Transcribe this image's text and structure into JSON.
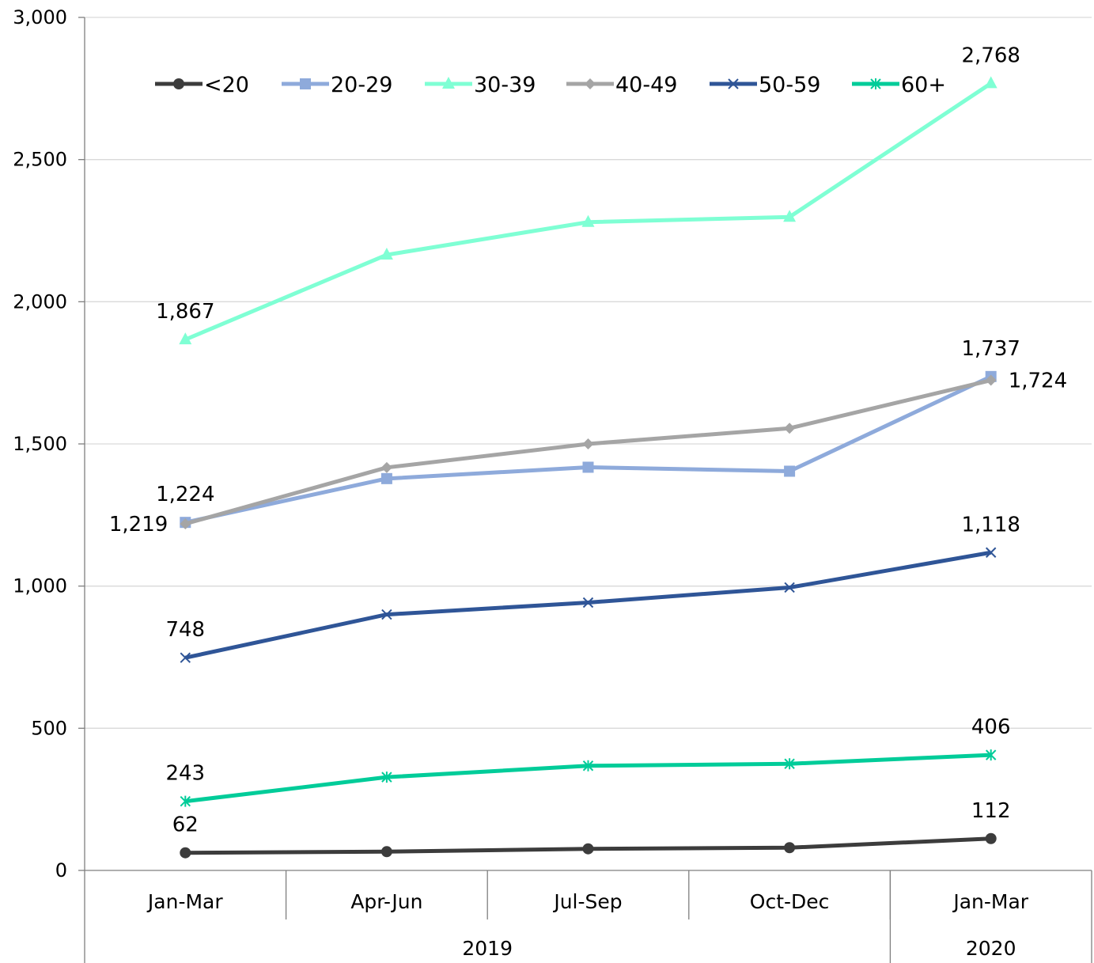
{
  "chart_data": {
    "type": "line",
    "title": "",
    "xlabel": "",
    "ylabel": "",
    "categories": [
      "Jan-Mar",
      "Apr-Jun",
      "Jul-Sep",
      "Oct-Dec",
      "Jan-Mar"
    ],
    "category_groups": [
      {
        "label": "2019",
        "span": 4
      },
      {
        "label": "2020",
        "span": 1
      }
    ],
    "ylim": [
      0,
      3000
    ],
    "yticks": [
      0,
      500,
      1000,
      1500,
      2000,
      2500,
      3000
    ],
    "ytick_labels": [
      "0",
      "500",
      "1,000",
      "1,500",
      "2,000",
      "2,500",
      "3,000"
    ],
    "grid": true,
    "legend_position": "top",
    "series": [
      {
        "name": "<20",
        "color": "#3c3c3c",
        "marker": "circle",
        "values": [
          62,
          66,
          76,
          80,
          112
        ],
        "labels": [
          {
            "index": 0,
            "text": "62",
            "pos": "above"
          },
          {
            "index": 4,
            "text": "112",
            "pos": "above"
          }
        ]
      },
      {
        "name": "20-29",
        "color": "#8eaadb",
        "marker": "square",
        "values": [
          1224,
          1378,
          1418,
          1404,
          1737
        ],
        "labels": [
          {
            "index": 0,
            "text": "1,224",
            "pos": "above"
          },
          {
            "index": 4,
            "text": "1,737",
            "pos": "above"
          }
        ]
      },
      {
        "name": "30-39",
        "color": "#7fffd4",
        "marker": "triangle",
        "values": [
          1867,
          2165,
          2280,
          2298,
          2768
        ],
        "labels": [
          {
            "index": 0,
            "text": "1,867",
            "pos": "above"
          },
          {
            "index": 4,
            "text": "2,768",
            "pos": "above"
          }
        ]
      },
      {
        "name": "40-49",
        "color": "#a5a5a5",
        "marker": "diamond",
        "values": [
          1219,
          1417,
          1500,
          1555,
          1724
        ],
        "labels": [
          {
            "index": 0,
            "text": "1,219",
            "pos": "left"
          },
          {
            "index": 4,
            "text": "1,724",
            "pos": "right"
          }
        ]
      },
      {
        "name": "50-59",
        "color": "#2f5597",
        "marker": "x",
        "values": [
          748,
          900,
          942,
          995,
          1118
        ],
        "labels": [
          {
            "index": 0,
            "text": "748",
            "pos": "above"
          },
          {
            "index": 4,
            "text": "1,118",
            "pos": "above"
          }
        ]
      },
      {
        "name": "60+",
        "color": "#00cc99",
        "marker": "star",
        "values": [
          243,
          328,
          368,
          375,
          406
        ],
        "labels": [
          {
            "index": 0,
            "text": "243",
            "pos": "above"
          },
          {
            "index": 4,
            "text": "406",
            "pos": "above"
          }
        ]
      }
    ]
  }
}
